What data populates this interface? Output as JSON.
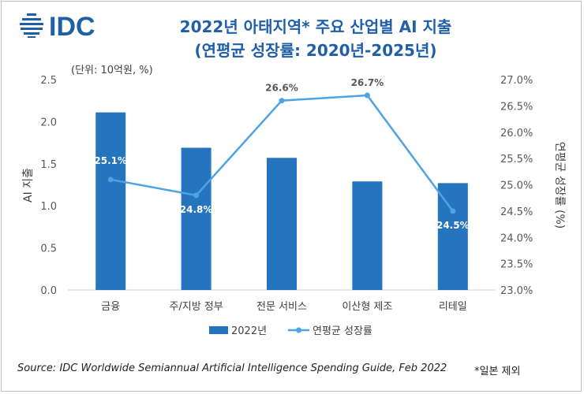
{
  "header": {
    "logo_text": "IDC",
    "title_line1": "2022년 아태지역* 주요 산업별 AI 지출",
    "title_line2": "(연평균 성장률: 2020년-2025년)",
    "unit_note": "(단위: 10억원, %)"
  },
  "colors": {
    "brand": "#1f5fa8",
    "bar": "#2474be",
    "line": "#4da3e3"
  },
  "chart_data": {
    "type": "bar",
    "categories": [
      "금융",
      "주/지방 정부",
      "전문 서비스",
      "이산형 제조",
      "리테일"
    ],
    "series": [
      {
        "name": "2022년",
        "type": "bar",
        "axis": "left",
        "values": [
          2.11,
          1.69,
          1.57,
          1.29,
          1.27
        ]
      },
      {
        "name": "연평균 성장률",
        "type": "line",
        "axis": "right",
        "values": [
          25.1,
          24.8,
          26.6,
          26.7,
          24.5
        ],
        "labels": [
          "25.1%",
          "24.8%",
          "26.6%",
          "26.7%",
          "24.5%"
        ]
      }
    ],
    "ylabel": "AI 지출",
    "y2label": "연평균 성장률 (%)",
    "ylim": [
      0,
      2.5
    ],
    "yticks": [
      "0.0",
      "0.5",
      "1.0",
      "1.5",
      "2.0",
      "2.5"
    ],
    "y2lim": [
      23.0,
      27.0
    ],
    "y2ticks": [
      "23.0%",
      "23.5%",
      "24.0%",
      "24.5%",
      "25.0%",
      "25.5%",
      "26.0%",
      "26.5%",
      "27.0%"
    ],
    "grid": false,
    "legend_position": "bottom"
  },
  "footer": {
    "source": "Source: IDC Worldwide Semiannual Artificial Intelligence Spending Guide, Feb 2022",
    "footnote": "*일본 제외"
  }
}
